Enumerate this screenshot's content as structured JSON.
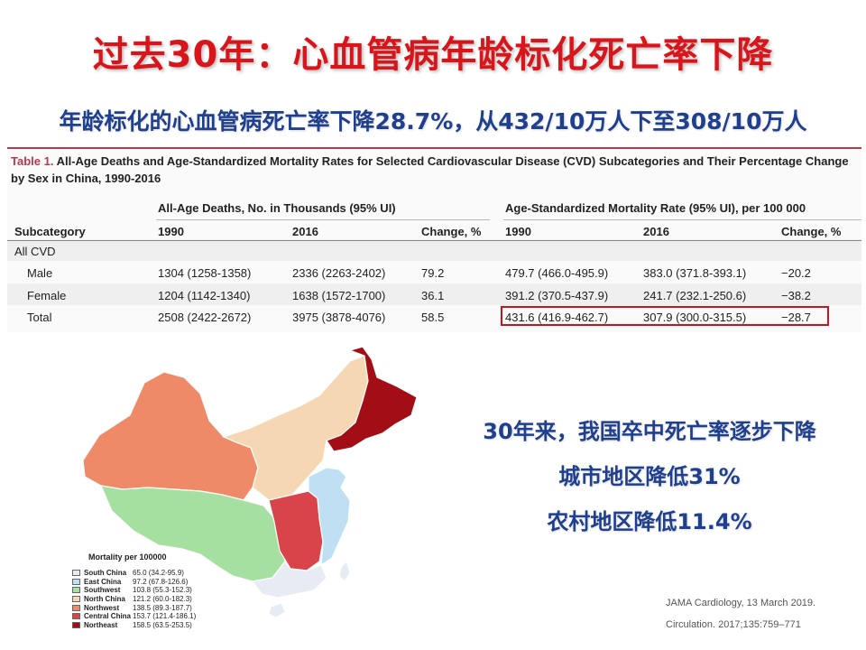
{
  "title": "过去30年：心血管病年龄标化死亡率下降",
  "subtitle": "年龄标化的心血管病死亡率下降28.7%，从432/10万人下至308/10万人",
  "table": {
    "caption_label": "Table 1.",
    "caption_text": " All-Age Deaths and Age-Standardized Mortality Rates for Selected Cardiovascular Disease (CVD) Subcategories and Their Percentage Change by Sex in China, 1990-2016",
    "group_deaths": "All-Age Deaths, No. in Thousands (95% UI)",
    "group_rate": "Age-Standardized Mortality Rate (95% UI), per 100 000",
    "columns": [
      "Subcategory",
      "1990",
      "2016",
      "Change, %",
      "1990",
      "2016",
      "Change, %"
    ],
    "section": "All CVD",
    "rows": [
      {
        "label": "Male",
        "d1990": "1304 (1258-1358)",
        "d2016": "2336 (2263-2402)",
        "dchange": "79.2",
        "r1990": "479.7 (466.0-495.9)",
        "r2016": "383.0 (371.8-393.1)",
        "rchange": "−20.2"
      },
      {
        "label": "Female",
        "d1990": "1204 (1142-1340)",
        "d2016": "1638 (1572-1700)",
        "dchange": "36.1",
        "r1990": "391.2 (370.5-437.9)",
        "r2016": "241.7 (232.1-250.6)",
        "rchange": "−38.2"
      },
      {
        "label": "Total",
        "d1990": "2508 (2422-2672)",
        "d2016": "3975 (3878-4076)",
        "dchange": "58.5",
        "r1990": "431.6 (416.9-462.7)",
        "r2016": "307.9 (300.0-315.5)",
        "rchange": "−28.7"
      }
    ]
  },
  "map": {
    "legend_title": "Mortality per 100000",
    "legend": [
      {
        "name": "South China",
        "value": "65.0 (34.2-95.9)",
        "color": "#e7ecf4"
      },
      {
        "name": "East China",
        "value": "97.2 (67.8-126.6)",
        "color": "#bfe0f2"
      },
      {
        "name": "Southwest",
        "value": "103.8 (55.3-152.3)",
        "color": "#a5e0a0"
      },
      {
        "name": "North China",
        "value": "121.2 (60.0-182.3)",
        "color": "#f6d7b4"
      },
      {
        "name": "Northwest",
        "value": "138.5 (89.3-187.7)",
        "color": "#ef8a69"
      },
      {
        "name": "Central China",
        "value": "153.7 (121.4-186.1)",
        "color": "#d8444a"
      },
      {
        "name": "Northeast",
        "value": "158.5 (63.5-253.5)",
        "color": "#a30e16"
      }
    ]
  },
  "bullets": [
    "30年来，我国卒中死亡率逐步下降",
    "城市地区降低31%",
    "农村地区降低11.4%"
  ],
  "references": [
    "JAMA Cardiology, 13 March 2019.",
    "Circulation. 2017;135:759–771"
  ]
}
